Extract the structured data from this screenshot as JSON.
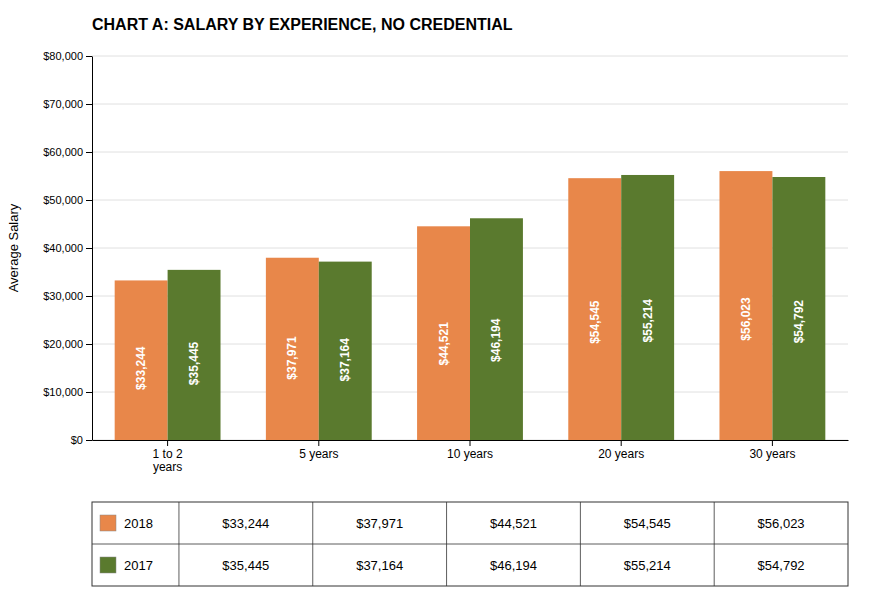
{
  "chart_data": {
    "type": "bar",
    "title": "CHART A: SALARY BY EXPERIENCE, NO CREDENTIAL",
    "ylabel": "Average Salary",
    "categories": [
      "1 to 2\nyears",
      "5 years",
      "10 years",
      "20 years",
      "30 years"
    ],
    "series": [
      {
        "name": "2018",
        "color": "#E8874A",
        "values": [
          33244,
          37971,
          44521,
          54545,
          56023
        ],
        "value_labels": [
          "$33,244",
          "$37,971",
          "$44,521",
          "$54,545",
          "$56,023"
        ]
      },
      {
        "name": "2017",
        "color": "#5A7A2E",
        "values": [
          35445,
          37164,
          46194,
          55214,
          54792
        ],
        "value_labels": [
          "$35,445",
          "$37,164",
          "$46,194",
          "$55,214",
          "$54,792"
        ]
      }
    ],
    "ylim": [
      0,
      80000
    ],
    "yticks": [
      {
        "value": 0,
        "label": "$0"
      },
      {
        "value": 10000,
        "label": "$10,000"
      },
      {
        "value": 20000,
        "label": "$20,000"
      },
      {
        "value": 30000,
        "label": "$30,000"
      },
      {
        "value": 40000,
        "label": "$40,000"
      },
      {
        "value": 50000,
        "label": "$50,000"
      },
      {
        "value": 60000,
        "label": "$60,000"
      },
      {
        "value": 70000,
        "label": "$70,000"
      },
      {
        "value": 80000,
        "label": "$80,000"
      }
    ],
    "grid": true,
    "data_labels": true,
    "legend": "bottom"
  }
}
